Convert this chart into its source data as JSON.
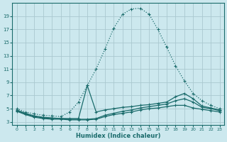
{
  "xlabel": "Humidex (Indice chaleur)",
  "bg_color": "#cce8ee",
  "grid_color": "#aac8d0",
  "line_color": "#1a6b6b",
  "xlim": [
    -0.5,
    23.5
  ],
  "ylim": [
    2.5,
    21.0
  ],
  "yticks": [
    3,
    5,
    7,
    9,
    11,
    13,
    15,
    17,
    19
  ],
  "xticks": [
    0,
    1,
    2,
    3,
    4,
    5,
    6,
    7,
    8,
    9,
    10,
    11,
    12,
    13,
    14,
    15,
    16,
    17,
    18,
    19,
    20,
    21,
    22,
    23
  ],
  "series": [
    {
      "name": "dotted_main",
      "x": [
        0,
        1,
        2,
        3,
        4,
        5,
        6,
        7,
        8,
        9,
        10,
        11,
        12,
        13,
        14,
        15,
        16,
        17,
        18,
        19,
        20,
        21,
        22,
        23
      ],
      "y": [
        5.0,
        4.5,
        4.2,
        4.0,
        3.9,
        3.8,
        4.5,
        6.0,
        8.5,
        11.0,
        14.0,
        17.2,
        19.3,
        20.1,
        20.2,
        19.3,
        17.0,
        14.3,
        11.5,
        9.2,
        7.3,
        6.2,
        5.5,
        5.0
      ],
      "style": "dotted"
    },
    {
      "name": "solid_spike",
      "x": [
        0,
        1,
        2,
        3,
        4,
        5,
        6,
        7,
        8,
        9,
        10,
        11,
        12,
        13,
        14,
        15,
        16,
        17,
        18,
        19,
        20,
        21,
        22,
        23
      ],
      "y": [
        4.8,
        4.3,
        3.9,
        3.7,
        3.6,
        3.5,
        3.5,
        3.5,
        8.5,
        4.5,
        4.8,
        5.0,
        5.2,
        5.3,
        5.5,
        5.6,
        5.8,
        6.0,
        6.8,
        7.3,
        6.5,
        5.4,
        5.1,
        4.8
      ],
      "style": "solid"
    },
    {
      "name": "solid_mid",
      "x": [
        0,
        1,
        2,
        3,
        4,
        5,
        6,
        7,
        8,
        9,
        10,
        11,
        12,
        13,
        14,
        15,
        16,
        17,
        18,
        19,
        20,
        21,
        22,
        23
      ],
      "y": [
        4.7,
        4.2,
        3.8,
        3.6,
        3.5,
        3.5,
        3.4,
        3.4,
        3.4,
        3.5,
        4.0,
        4.3,
        4.6,
        4.8,
        5.1,
        5.3,
        5.5,
        5.7,
        6.2,
        6.5,
        6.0,
        5.2,
        5.0,
        4.7
      ],
      "style": "solid"
    },
    {
      "name": "solid_low",
      "x": [
        0,
        1,
        2,
        3,
        4,
        5,
        6,
        7,
        8,
        9,
        10,
        11,
        12,
        13,
        14,
        15,
        16,
        17,
        18,
        19,
        20,
        21,
        22,
        23
      ],
      "y": [
        4.6,
        4.1,
        3.7,
        3.5,
        3.4,
        3.4,
        3.3,
        3.3,
        3.3,
        3.4,
        3.8,
        4.1,
        4.3,
        4.5,
        4.8,
        5.0,
        5.1,
        5.3,
        5.5,
        5.5,
        5.1,
        4.9,
        4.7,
        4.5
      ],
      "style": "solid"
    }
  ]
}
